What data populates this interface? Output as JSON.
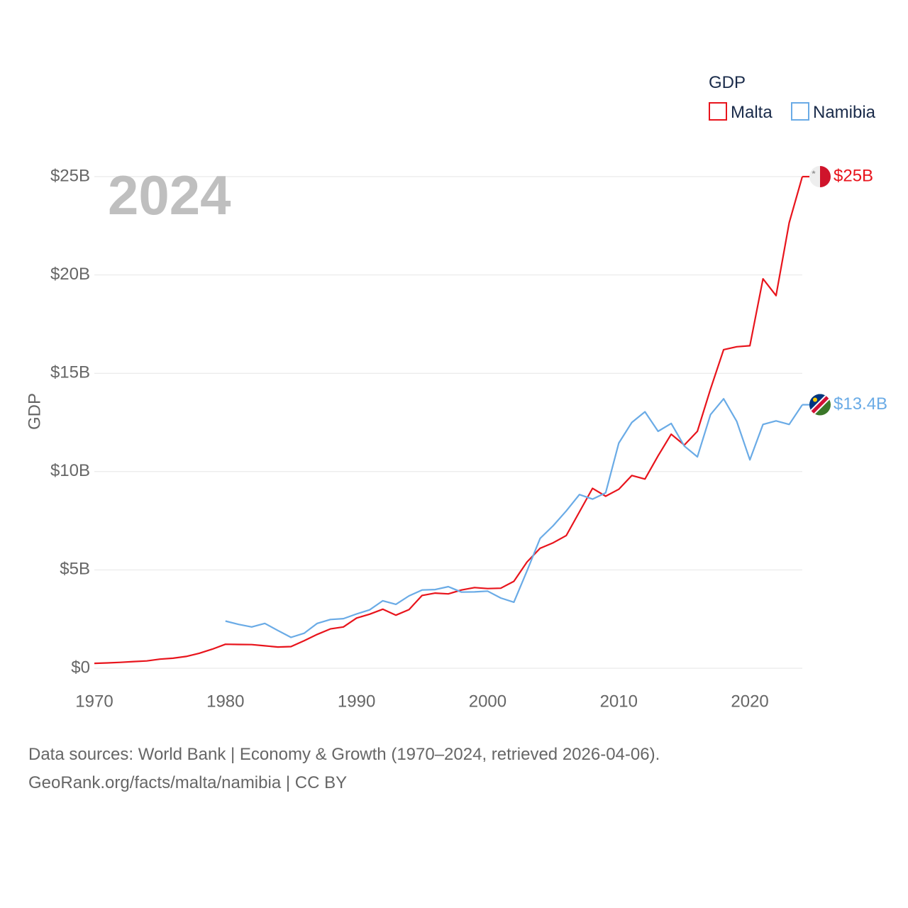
{
  "chart_data": {
    "type": "line",
    "ylabel": "GDP",
    "legend_title": "GDP",
    "legend_position": "top-right",
    "year_label": "2024",
    "ylim": [
      0,
      25000000000
    ],
    "xlim": [
      1970,
      2024
    ],
    "y_ticks": [
      {
        "value": 0,
        "label": "$0"
      },
      {
        "value": 5000000000,
        "label": "$5B"
      },
      {
        "value": 10000000000,
        "label": "$10B"
      },
      {
        "value": 15000000000,
        "label": "$15B"
      },
      {
        "value": 20000000000,
        "label": "$20B"
      },
      {
        "value": 25000000000,
        "label": "$25B"
      }
    ],
    "x_ticks": [
      {
        "value": 1970,
        "label": "1970"
      },
      {
        "value": 1980,
        "label": "1980"
      },
      {
        "value": 1990,
        "label": "1990"
      },
      {
        "value": 2000,
        "label": "2000"
      },
      {
        "value": 2010,
        "label": "2010"
      },
      {
        "value": 2020,
        "label": "2020"
      }
    ],
    "series": [
      {
        "name": "Malta",
        "color": "#e8141c",
        "end_label": "$25B",
        "icon": "malta-flag-icon",
        "x": [
          1970,
          1971,
          1972,
          1973,
          1974,
          1975,
          1976,
          1977,
          1978,
          1979,
          1980,
          1981,
          1982,
          1983,
          1984,
          1985,
          1986,
          1987,
          1988,
          1989,
          1990,
          1991,
          1992,
          1993,
          1994,
          1995,
          1996,
          1997,
          1998,
          1999,
          2000,
          2001,
          2002,
          2003,
          2004,
          2005,
          2006,
          2007,
          2008,
          2009,
          2010,
          2011,
          2012,
          2013,
          2014,
          2015,
          2016,
          2017,
          2018,
          2019,
          2020,
          2021,
          2022,
          2023,
          2024
        ],
        "values": [
          0.25,
          0.27,
          0.3,
          0.34,
          0.37,
          0.46,
          0.51,
          0.6,
          0.76,
          0.97,
          1.22,
          1.21,
          1.2,
          1.14,
          1.08,
          1.1,
          1.4,
          1.72,
          2.0,
          2.1,
          2.55,
          2.75,
          3.0,
          2.7,
          2.98,
          3.7,
          3.82,
          3.78,
          3.98,
          4.1,
          4.05,
          4.07,
          4.42,
          5.4,
          6.1,
          6.38,
          6.75,
          7.95,
          9.15,
          8.75,
          9.1,
          9.8,
          9.62,
          10.8,
          11.9,
          11.35,
          12.05,
          14.2,
          16.2,
          16.35,
          16.4,
          19.8,
          18.95,
          22.65,
          25.0
        ]
      },
      {
        "name": "Namibia",
        "color": "#6aabe6",
        "end_label": "$13.4B",
        "icon": "namibia-flag-icon",
        "x": [
          1980,
          1981,
          1982,
          1983,
          1984,
          1985,
          1986,
          1987,
          1988,
          1989,
          1990,
          1991,
          1992,
          1993,
          1994,
          1995,
          1996,
          1997,
          1998,
          1999,
          2000,
          2001,
          2002,
          2003,
          2004,
          2005,
          2006,
          2007,
          2008,
          2009,
          2010,
          2011,
          2012,
          2013,
          2014,
          2015,
          2016,
          2017,
          2018,
          2019,
          2020,
          2021,
          2022,
          2023,
          2024
        ],
        "values": [
          2.4,
          2.23,
          2.1,
          2.28,
          1.92,
          1.57,
          1.78,
          2.28,
          2.48,
          2.52,
          2.76,
          2.97,
          3.43,
          3.25,
          3.68,
          3.98,
          4.0,
          4.15,
          3.87,
          3.88,
          3.92,
          3.57,
          3.36,
          4.95,
          6.6,
          7.25,
          8.0,
          8.83,
          8.6,
          8.92,
          11.45,
          12.5,
          13.04,
          12.05,
          12.45,
          11.3,
          10.75,
          12.9,
          13.7,
          12.55,
          10.6,
          12.4,
          12.58,
          12.4,
          13.4
        ]
      }
    ]
  },
  "footer": {
    "line1": "Data sources: World Bank | Economy & Growth (1970–2024, retrieved 2026-04-06).",
    "line2": "GeoRank.org/facts/malta/namibia | CC BY"
  }
}
